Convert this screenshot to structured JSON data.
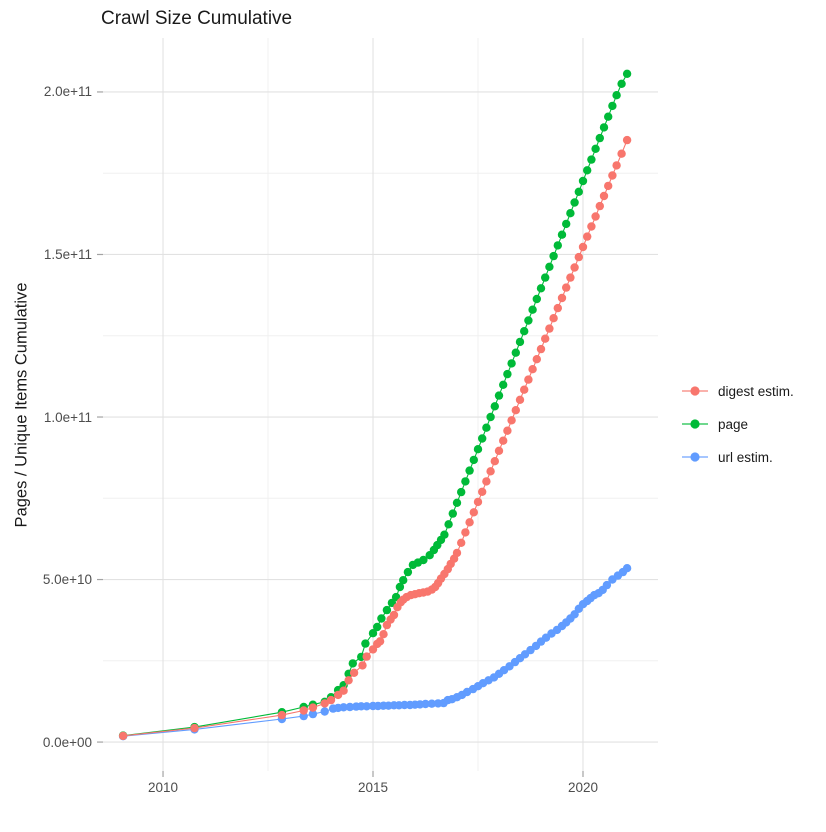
{
  "chart_data": {
    "type": "line",
    "title": "Crawl Size Cumulative",
    "xlabel": "",
    "ylabel": "Pages / Unique Items Cumulative",
    "legend_position": "right",
    "grid": true,
    "background": "#ffffff",
    "value_unit_note": "point values are in units of 1e9 (billions); axis shows scientific notation",
    "unit_multiplier": 1000000000.0,
    "x_range": [
      2008.571,
      2021.786
    ],
    "y_range_e9": [
      -8.9,
      216.6
    ],
    "x_ticks": [
      {
        "value": 2010,
        "label": "2010"
      },
      {
        "value": 2015,
        "label": "2015"
      },
      {
        "value": 2020,
        "label": "2020"
      }
    ],
    "x_minor_ticks": [
      2012.5,
      2017.5
    ],
    "y_ticks": [
      {
        "value_e9": 0,
        "label": "0.0e+00"
      },
      {
        "value_e9": 50,
        "label": "5.0e+10"
      },
      {
        "value_e9": 100,
        "label": "1.0e+11"
      },
      {
        "value_e9": 150,
        "label": "1.5e+11"
      },
      {
        "value_e9": 200,
        "label": "2.0e+11"
      }
    ],
    "y_minor_ticks_e9": [
      25,
      75,
      125,
      175
    ],
    "draw_order": [
      2,
      1,
      0
    ],
    "series": [
      {
        "name": "digest estim.",
        "color": "#F8766D",
        "points_year_value_e9": [
          [
            2009.05,
            1.9
          ],
          [
            2010.75,
            4.3
          ],
          [
            2012.83,
            8.3
          ],
          [
            2013.35,
            9.7
          ],
          [
            2013.57,
            10.6
          ],
          [
            2013.85,
            11.9
          ],
          [
            2014.0,
            12.9
          ],
          [
            2014.17,
            14.5
          ],
          [
            2014.3,
            15.8
          ],
          [
            2014.42,
            19.0
          ],
          [
            2014.55,
            21.3
          ],
          [
            2014.75,
            23.6
          ],
          [
            2014.85,
            26.3
          ],
          [
            2015.0,
            28.5
          ],
          [
            2015.1,
            30.2
          ],
          [
            2015.17,
            31.0
          ],
          [
            2015.25,
            33.2
          ],
          [
            2015.33,
            36.0
          ],
          [
            2015.42,
            37.7
          ],
          [
            2015.5,
            39.1
          ],
          [
            2015.58,
            41.5
          ],
          [
            2015.66,
            43.0
          ],
          [
            2015.72,
            43.8
          ],
          [
            2015.8,
            44.6
          ],
          [
            2015.9,
            45.2
          ],
          [
            2016.0,
            45.5
          ],
          [
            2016.1,
            45.8
          ],
          [
            2016.2,
            46.0
          ],
          [
            2016.3,
            46.3
          ],
          [
            2016.4,
            46.9
          ],
          [
            2016.48,
            47.7
          ],
          [
            2016.55,
            48.9
          ],
          [
            2016.62,
            50.3
          ],
          [
            2016.7,
            51.7
          ],
          [
            2016.78,
            53.2
          ],
          [
            2016.85,
            54.8
          ],
          [
            2016.93,
            56.4
          ],
          [
            2017.0,
            58.2
          ],
          [
            2017.1,
            61.3
          ],
          [
            2017.2,
            64.5
          ],
          [
            2017.3,
            67.6
          ],
          [
            2017.4,
            70.7
          ],
          [
            2017.5,
            73.9
          ],
          [
            2017.6,
            77.0
          ],
          [
            2017.7,
            80.2
          ],
          [
            2017.8,
            83.3
          ],
          [
            2017.9,
            86.4
          ],
          [
            2018.0,
            89.6
          ],
          [
            2018.1,
            92.7
          ],
          [
            2018.2,
            95.8
          ],
          [
            2018.3,
            99.0
          ],
          [
            2018.4,
            102.1
          ],
          [
            2018.5,
            105.3
          ],
          [
            2018.6,
            108.4
          ],
          [
            2018.7,
            111.5
          ],
          [
            2018.8,
            114.7
          ],
          [
            2018.9,
            117.8
          ],
          [
            2019.0,
            120.9
          ],
          [
            2019.1,
            124.1
          ],
          [
            2019.2,
            127.2
          ],
          [
            2019.3,
            130.4
          ],
          [
            2019.4,
            133.5
          ],
          [
            2019.5,
            136.6
          ],
          [
            2019.6,
            139.8
          ],
          [
            2019.7,
            142.9
          ],
          [
            2019.8,
            146.0
          ],
          [
            2019.9,
            149.2
          ],
          [
            2020.0,
            152.3
          ],
          [
            2020.1,
            155.5
          ],
          [
            2020.2,
            158.6
          ],
          [
            2020.3,
            161.7
          ],
          [
            2020.4,
            164.9
          ],
          [
            2020.5,
            168.0
          ],
          [
            2020.6,
            171.1
          ],
          [
            2020.7,
            174.3
          ],
          [
            2020.8,
            177.4
          ],
          [
            2020.92,
            181.0
          ],
          [
            2021.05,
            185.2
          ]
        ]
      },
      {
        "name": "page",
        "color": "#00BA38",
        "points_year_value_e9": [
          [
            2009.05,
            2.0
          ],
          [
            2010.75,
            4.6
          ],
          [
            2012.83,
            9.2
          ],
          [
            2013.35,
            10.8
          ],
          [
            2013.57,
            11.5
          ],
          [
            2013.85,
            12.4
          ],
          [
            2014.0,
            13.8
          ],
          [
            2014.17,
            16.0
          ],
          [
            2014.3,
            17.5
          ],
          [
            2014.42,
            21.0
          ],
          [
            2014.52,
            24.2
          ],
          [
            2014.72,
            26.2
          ],
          [
            2014.82,
            30.3
          ],
          [
            2015.0,
            33.5
          ],
          [
            2015.1,
            35.4
          ],
          [
            2015.2,
            38.0
          ],
          [
            2015.33,
            40.6
          ],
          [
            2015.45,
            42.8
          ],
          [
            2015.55,
            44.6
          ],
          [
            2015.64,
            47.7
          ],
          [
            2015.72,
            49.8
          ],
          [
            2015.83,
            52.3
          ],
          [
            2015.95,
            54.5
          ],
          [
            2016.07,
            55.2
          ],
          [
            2016.2,
            56.0
          ],
          [
            2016.35,
            57.5
          ],
          [
            2016.45,
            59.1
          ],
          [
            2016.53,
            60.6
          ],
          [
            2016.62,
            62.2
          ],
          [
            2016.7,
            63.8
          ],
          [
            2016.8,
            67.0
          ],
          [
            2016.9,
            70.3
          ],
          [
            2017.0,
            73.6
          ],
          [
            2017.1,
            76.9
          ],
          [
            2017.2,
            80.2
          ],
          [
            2017.3,
            83.5
          ],
          [
            2017.4,
            86.8
          ],
          [
            2017.5,
            90.1
          ],
          [
            2017.6,
            93.4
          ],
          [
            2017.7,
            96.7
          ],
          [
            2017.8,
            100.0
          ],
          [
            2017.9,
            103.3
          ],
          [
            2018.0,
            106.6
          ],
          [
            2018.1,
            109.9
          ],
          [
            2018.2,
            113.2
          ],
          [
            2018.3,
            116.5
          ],
          [
            2018.4,
            119.8
          ],
          [
            2018.5,
            123.1
          ],
          [
            2018.6,
            126.4
          ],
          [
            2018.7,
            129.7
          ],
          [
            2018.8,
            133.0
          ],
          [
            2018.9,
            136.3
          ],
          [
            2019.0,
            139.6
          ],
          [
            2019.1,
            142.9
          ],
          [
            2019.2,
            146.2
          ],
          [
            2019.3,
            149.5
          ],
          [
            2019.4,
            152.8
          ],
          [
            2019.5,
            156.1
          ],
          [
            2019.6,
            159.4
          ],
          [
            2019.7,
            162.7
          ],
          [
            2019.8,
            166.0
          ],
          [
            2019.9,
            169.3
          ],
          [
            2020.0,
            172.6
          ],
          [
            2020.1,
            175.9
          ],
          [
            2020.2,
            179.2
          ],
          [
            2020.3,
            182.5
          ],
          [
            2020.4,
            185.8
          ],
          [
            2020.5,
            189.1
          ],
          [
            2020.6,
            192.4
          ],
          [
            2020.7,
            195.7
          ],
          [
            2020.8,
            199.0
          ],
          [
            2020.92,
            202.5
          ],
          [
            2021.05,
            205.6
          ]
        ]
      },
      {
        "name": "url estim.",
        "color": "#619CFF",
        "points_year_value_e9": [
          [
            2009.05,
            1.8
          ],
          [
            2010.75,
            3.9
          ],
          [
            2012.83,
            7.1
          ],
          [
            2013.35,
            8.0
          ],
          [
            2013.57,
            8.6
          ],
          [
            2013.85,
            9.4
          ],
          [
            2014.05,
            10.3
          ],
          [
            2014.17,
            10.5
          ],
          [
            2014.3,
            10.7
          ],
          [
            2014.45,
            10.8
          ],
          [
            2014.6,
            10.9
          ],
          [
            2014.72,
            11.0
          ],
          [
            2014.85,
            11.0
          ],
          [
            2015.0,
            11.1
          ],
          [
            2015.12,
            11.1
          ],
          [
            2015.25,
            11.2
          ],
          [
            2015.37,
            11.2
          ],
          [
            2015.5,
            11.3
          ],
          [
            2015.62,
            11.3
          ],
          [
            2015.75,
            11.4
          ],
          [
            2015.88,
            11.4
          ],
          [
            2016.0,
            11.5
          ],
          [
            2016.12,
            11.6
          ],
          [
            2016.25,
            11.7
          ],
          [
            2016.4,
            11.8
          ],
          [
            2016.55,
            11.9
          ],
          [
            2016.68,
            12.0
          ],
          [
            2016.78,
            12.9
          ],
          [
            2016.88,
            13.2
          ],
          [
            2017.0,
            13.8
          ],
          [
            2017.12,
            14.5
          ],
          [
            2017.24,
            15.4
          ],
          [
            2017.38,
            16.3
          ],
          [
            2017.5,
            17.2
          ],
          [
            2017.62,
            18.1
          ],
          [
            2017.75,
            19.0
          ],
          [
            2017.88,
            19.9
          ],
          [
            2018.0,
            21.0
          ],
          [
            2018.12,
            22.1
          ],
          [
            2018.25,
            23.3
          ],
          [
            2018.38,
            24.6
          ],
          [
            2018.5,
            25.8
          ],
          [
            2018.62,
            27.0
          ],
          [
            2018.75,
            28.3
          ],
          [
            2018.88,
            29.6
          ],
          [
            2019.0,
            30.9
          ],
          [
            2019.12,
            32.1
          ],
          [
            2019.25,
            33.4
          ],
          [
            2019.38,
            34.5
          ],
          [
            2019.5,
            35.7
          ],
          [
            2019.6,
            36.8
          ],
          [
            2019.7,
            38.0
          ],
          [
            2019.8,
            39.3
          ],
          [
            2019.9,
            41.0
          ],
          [
            2020.0,
            42.4
          ],
          [
            2020.1,
            43.4
          ],
          [
            2020.18,
            44.3
          ],
          [
            2020.27,
            45.2
          ],
          [
            2020.37,
            45.8
          ],
          [
            2020.47,
            46.8
          ],
          [
            2020.57,
            48.3
          ],
          [
            2020.7,
            50.0
          ],
          [
            2020.83,
            51.2
          ],
          [
            2020.95,
            52.3
          ],
          [
            2021.05,
            53.5
          ]
        ]
      }
    ]
  },
  "colors": {
    "major_grid": "#E2E2E2",
    "minor_grid": "#F0F0F0",
    "tick_mark": "#A3A3A3",
    "tick_label": "#4d4d4d",
    "title": "#1a1a1a"
  }
}
